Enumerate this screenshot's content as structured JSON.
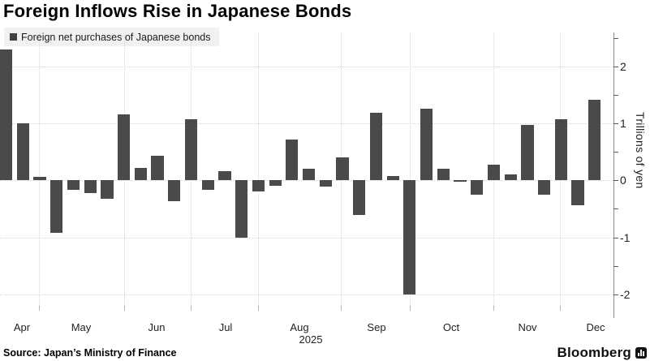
{
  "title": "Foreign Inflows Rise in Japanese Bonds",
  "legend": {
    "label": "Foreign net purchases of Japanese bonds",
    "swatch_color": "#3f3f3f"
  },
  "source": "Source: Japan’s Ministry of Finance",
  "brand": {
    "name": "Bloomberg",
    "icon": "bar-chart-icon"
  },
  "chart_data": {
    "type": "bar",
    "title": "Foreign Inflows Rise in Japanese Bonds",
    "series_name": "Foreign net purchases of Japanese bonds",
    "frequency": "weekly",
    "x_months": [
      "Apr",
      "May",
      "Jun",
      "Jul",
      "Aug",
      "Sep",
      "Oct",
      "Nov",
      "Dec"
    ],
    "year_label": "2025",
    "values": [
      2.3,
      1.0,
      0.06,
      -0.92,
      -0.16,
      -0.23,
      -0.33,
      1.16,
      0.22,
      0.43,
      -0.37,
      1.07,
      -0.17,
      0.16,
      -1.0,
      -0.2,
      -0.1,
      0.72,
      0.2,
      -0.11,
      0.4,
      -0.61,
      1.19,
      0.07,
      -2.0,
      1.26,
      0.2,
      -0.03,
      -0.25,
      0.28,
      0.11,
      0.97,
      -0.25,
      1.07,
      -0.43,
      1.41
    ],
    "ylabel": "Trillions of yen",
    "y_tick_labels": [
      "2",
      "1",
      "0",
      "-1",
      "-2"
    ],
    "y_ticks": [
      2,
      1,
      0,
      -1,
      -2
    ],
    "ylim": [
      -2.5,
      2.6
    ],
    "grid": "dotted",
    "legend_position": "top-left",
    "bar_color": "#4a4a4a"
  }
}
